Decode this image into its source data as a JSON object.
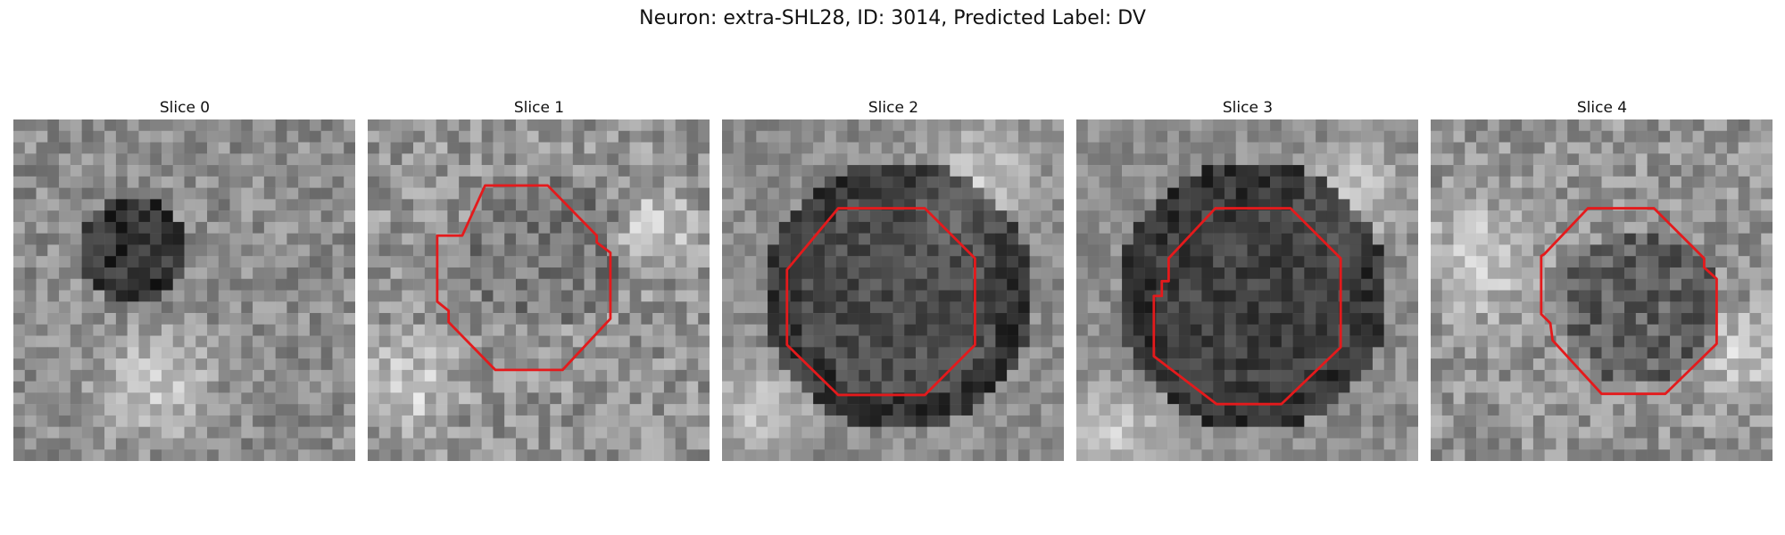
{
  "figure": {
    "title": "Neuron: extra-SHL28, ID: 3014, Predicted Label: DV"
  },
  "panels": [
    {
      "title": "Slice 0",
      "outline": false
    },
    {
      "title": "Slice 1",
      "outline": true
    },
    {
      "title": "Slice 2",
      "outline": true
    },
    {
      "title": "Slice 3",
      "outline": true
    },
    {
      "title": "Slice 4",
      "outline": true
    }
  ],
  "colors": {
    "outline": "#e41a1c",
    "background": "#ffffff"
  }
}
